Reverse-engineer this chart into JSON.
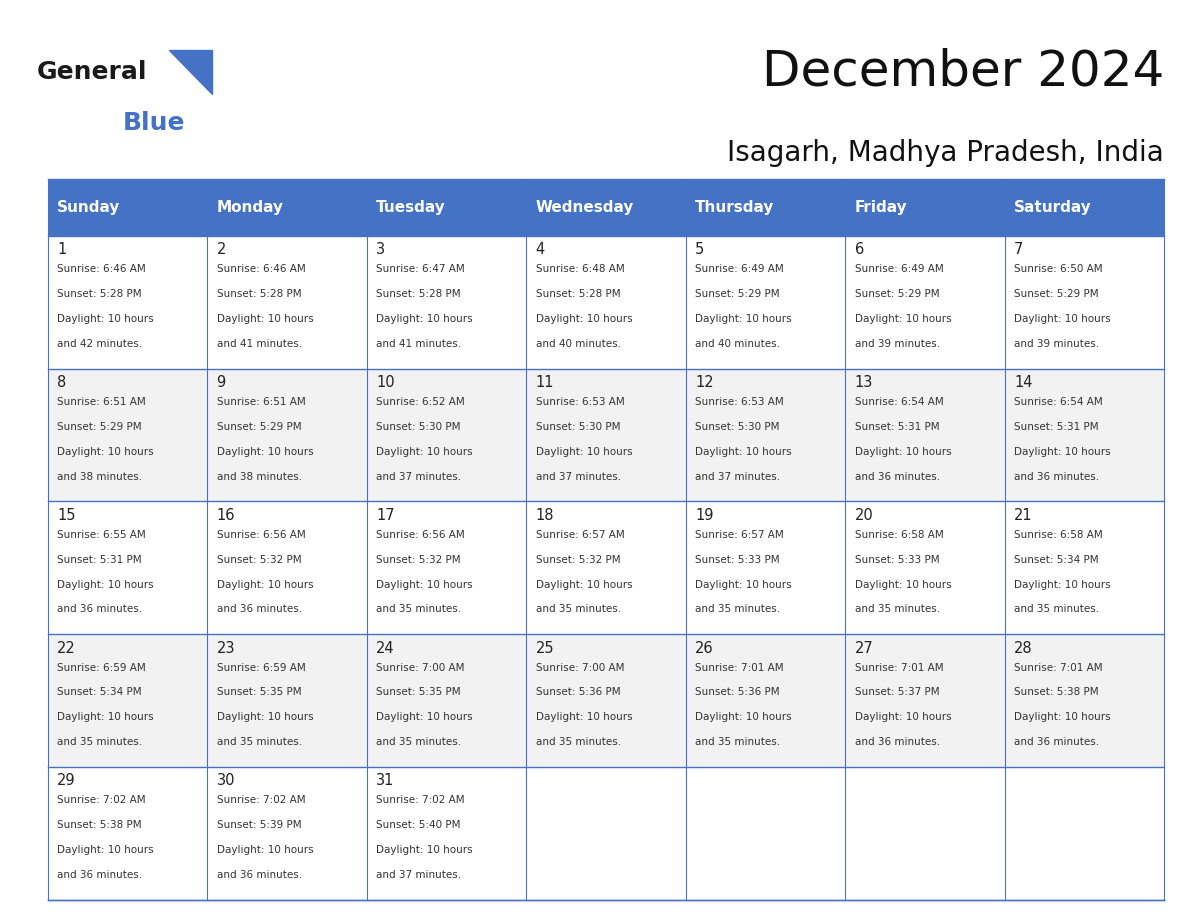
{
  "title": "December 2024",
  "subtitle": "Isagarh, Madhya Pradesh, India",
  "header_bg_color": "#4472C4",
  "header_text_color": "#FFFFFF",
  "header_font_size": 11,
  "day_names": [
    "Sunday",
    "Monday",
    "Tuesday",
    "Wednesday",
    "Thursday",
    "Friday",
    "Saturday"
  ],
  "border_color": "#4472C4",
  "calendar": [
    [
      {
        "day": 1,
        "sunrise": "6:46 AM",
        "sunset": "5:28 PM",
        "daylight": "10 hours and 42 minutes."
      },
      {
        "day": 2,
        "sunrise": "6:46 AM",
        "sunset": "5:28 PM",
        "daylight": "10 hours and 41 minutes."
      },
      {
        "day": 3,
        "sunrise": "6:47 AM",
        "sunset": "5:28 PM",
        "daylight": "10 hours and 41 minutes."
      },
      {
        "day": 4,
        "sunrise": "6:48 AM",
        "sunset": "5:28 PM",
        "daylight": "10 hours and 40 minutes."
      },
      {
        "day": 5,
        "sunrise": "6:49 AM",
        "sunset": "5:29 PM",
        "daylight": "10 hours and 40 minutes."
      },
      {
        "day": 6,
        "sunrise": "6:49 AM",
        "sunset": "5:29 PM",
        "daylight": "10 hours and 39 minutes."
      },
      {
        "day": 7,
        "sunrise": "6:50 AM",
        "sunset": "5:29 PM",
        "daylight": "10 hours and 39 minutes."
      }
    ],
    [
      {
        "day": 8,
        "sunrise": "6:51 AM",
        "sunset": "5:29 PM",
        "daylight": "10 hours and 38 minutes."
      },
      {
        "day": 9,
        "sunrise": "6:51 AM",
        "sunset": "5:29 PM",
        "daylight": "10 hours and 38 minutes."
      },
      {
        "day": 10,
        "sunrise": "6:52 AM",
        "sunset": "5:30 PM",
        "daylight": "10 hours and 37 minutes."
      },
      {
        "day": 11,
        "sunrise": "6:53 AM",
        "sunset": "5:30 PM",
        "daylight": "10 hours and 37 minutes."
      },
      {
        "day": 12,
        "sunrise": "6:53 AM",
        "sunset": "5:30 PM",
        "daylight": "10 hours and 37 minutes."
      },
      {
        "day": 13,
        "sunrise": "6:54 AM",
        "sunset": "5:31 PM",
        "daylight": "10 hours and 36 minutes."
      },
      {
        "day": 14,
        "sunrise": "6:54 AM",
        "sunset": "5:31 PM",
        "daylight": "10 hours and 36 minutes."
      }
    ],
    [
      {
        "day": 15,
        "sunrise": "6:55 AM",
        "sunset": "5:31 PM",
        "daylight": "10 hours and 36 minutes."
      },
      {
        "day": 16,
        "sunrise": "6:56 AM",
        "sunset": "5:32 PM",
        "daylight": "10 hours and 36 minutes."
      },
      {
        "day": 17,
        "sunrise": "6:56 AM",
        "sunset": "5:32 PM",
        "daylight": "10 hours and 35 minutes."
      },
      {
        "day": 18,
        "sunrise": "6:57 AM",
        "sunset": "5:32 PM",
        "daylight": "10 hours and 35 minutes."
      },
      {
        "day": 19,
        "sunrise": "6:57 AM",
        "sunset": "5:33 PM",
        "daylight": "10 hours and 35 minutes."
      },
      {
        "day": 20,
        "sunrise": "6:58 AM",
        "sunset": "5:33 PM",
        "daylight": "10 hours and 35 minutes."
      },
      {
        "day": 21,
        "sunrise": "6:58 AM",
        "sunset": "5:34 PM",
        "daylight": "10 hours and 35 minutes."
      }
    ],
    [
      {
        "day": 22,
        "sunrise": "6:59 AM",
        "sunset": "5:34 PM",
        "daylight": "10 hours and 35 minutes."
      },
      {
        "day": 23,
        "sunrise": "6:59 AM",
        "sunset": "5:35 PM",
        "daylight": "10 hours and 35 minutes."
      },
      {
        "day": 24,
        "sunrise": "7:00 AM",
        "sunset": "5:35 PM",
        "daylight": "10 hours and 35 minutes."
      },
      {
        "day": 25,
        "sunrise": "7:00 AM",
        "sunset": "5:36 PM",
        "daylight": "10 hours and 35 minutes."
      },
      {
        "day": 26,
        "sunrise": "7:01 AM",
        "sunset": "5:36 PM",
        "daylight": "10 hours and 35 minutes."
      },
      {
        "day": 27,
        "sunrise": "7:01 AM",
        "sunset": "5:37 PM",
        "daylight": "10 hours and 36 minutes."
      },
      {
        "day": 28,
        "sunrise": "7:01 AM",
        "sunset": "5:38 PM",
        "daylight": "10 hours and 36 minutes."
      }
    ],
    [
      {
        "day": 29,
        "sunrise": "7:02 AM",
        "sunset": "5:38 PM",
        "daylight": "10 hours and 36 minutes."
      },
      {
        "day": 30,
        "sunrise": "7:02 AM",
        "sunset": "5:39 PM",
        "daylight": "10 hours and 36 minutes."
      },
      {
        "day": 31,
        "sunrise": "7:02 AM",
        "sunset": "5:40 PM",
        "daylight": "10 hours and 37 minutes."
      },
      null,
      null,
      null,
      null
    ]
  ],
  "logo_text1": "General",
  "logo_text2": "Blue",
  "logo_color1": "#1a1a1a",
  "logo_color2": "#4472C4",
  "title_fontsize": 36,
  "subtitle_fontsize": 20
}
